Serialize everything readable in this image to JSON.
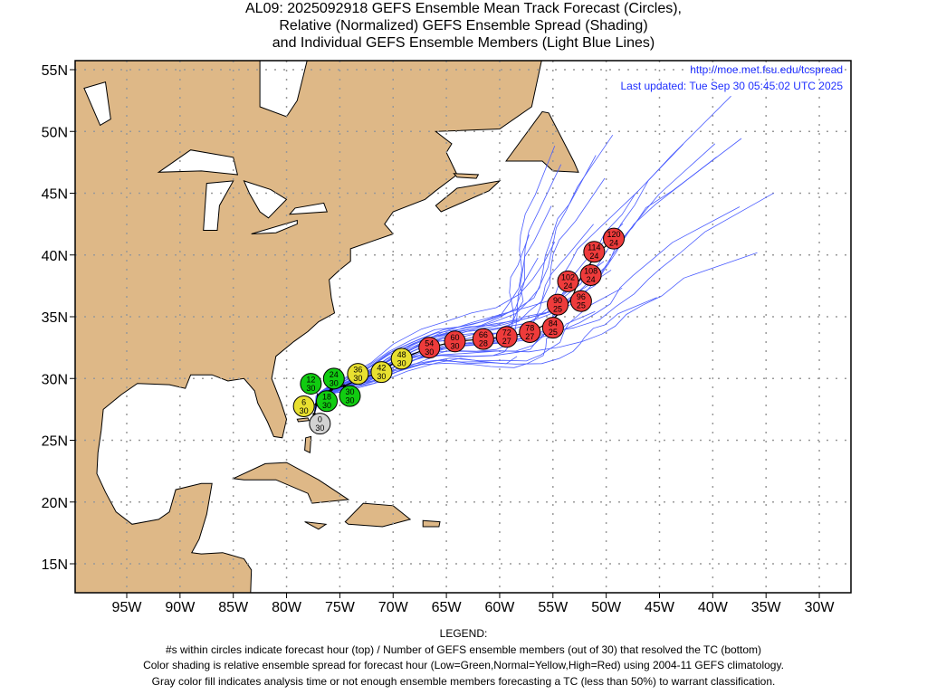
{
  "title": {
    "line1": "AL09: 2025092918 GEFS Ensemble Mean Track Forecast (Circles),",
    "line2": "Relative (Normalized) GEFS Ensemble Spread (Shading)",
    "line3": "and Individual GEFS Ensemble Members (Light Blue Lines)"
  },
  "info": {
    "url": "http://moe.met.fsu.edu/tcspread",
    "updated": "Last updated: Tue Sep 30 05:45:02 UTC 2025"
  },
  "legend": {
    "heading": "LEGEND:",
    "line1": "#s within circles indicate forecast hour (top) / Number of GEFS ensemble members (out of 30) that resolved the TC (bottom)",
    "line2": "Color shading is relative ensemble spread for forecast hour (Low=Green,Normal=Yellow,High=Red) using 2004-11 GEFS climatology.",
    "line3": "Gray color fill indicates analysis time or not enough ensemble members forecasting a TC (less than 50%) to warrant classification."
  },
  "colors": {
    "land": "#deb887",
    "low": "#11cc11",
    "normal": "#e8e030",
    "high": "#ee3b3b",
    "gray": "#d3d3d3",
    "member": "#4a5cff",
    "grid": "#999999"
  },
  "chart_data": {
    "type": "scatter",
    "projection": "lat-lon",
    "xlim": [
      -100,
      -27
    ],
    "ylim": [
      12.7,
      55.7
    ],
    "grid": true,
    "x_ticks": [
      {
        "value": -95,
        "label": "95W"
      },
      {
        "value": -90,
        "label": "90W"
      },
      {
        "value": -85,
        "label": "85W"
      },
      {
        "value": -80,
        "label": "80W"
      },
      {
        "value": -75,
        "label": "75W"
      },
      {
        "value": -70,
        "label": "70W"
      },
      {
        "value": -65,
        "label": "65W"
      },
      {
        "value": -60,
        "label": "60W"
      },
      {
        "value": -55,
        "label": "55W"
      },
      {
        "value": -50,
        "label": "50W"
      },
      {
        "value": -45,
        "label": "45W"
      },
      {
        "value": -40,
        "label": "40W"
      },
      {
        "value": -35,
        "label": "35W"
      },
      {
        "value": -30,
        "label": "30W"
      }
    ],
    "y_ticks": [
      {
        "value": 55,
        "label": "55N"
      },
      {
        "value": 50,
        "label": "50N"
      },
      {
        "value": 45,
        "label": "45N"
      },
      {
        "value": 40,
        "label": "40N"
      },
      {
        "value": 35,
        "label": "35N"
      },
      {
        "value": 30,
        "label": "30N"
      },
      {
        "value": 25,
        "label": "25N"
      },
      {
        "value": 20,
        "label": "20N"
      },
      {
        "value": 15,
        "label": "15N"
      }
    ],
    "mean_track": [
      {
        "hour": "0",
        "members": "30",
        "spread": "gray",
        "lon": -77.4,
        "lat": 27.1
      },
      {
        "hour": "6",
        "members": "30",
        "spread": "normal",
        "lon": -77.2,
        "lat": 27.9
      },
      {
        "hour": "12",
        "members": "30",
        "spread": "low",
        "lon": -77.0,
        "lat": 28.6
      },
      {
        "hour": "18",
        "members": "30",
        "spread": "low",
        "lon": -76.6,
        "lat": 28.8
      },
      {
        "hour": "24",
        "members": "30",
        "spread": "low",
        "lon": -75.8,
        "lat": 29.1
      },
      {
        "hour": "30",
        "members": "30",
        "spread": "low",
        "lon": -74.6,
        "lat": 29.4
      },
      {
        "hour": "36",
        "members": "30",
        "spread": "normal",
        "lon": -73.2,
        "lat": 29.9
      },
      {
        "hour": "42",
        "members": "30",
        "spread": "normal",
        "lon": -71.4,
        "lat": 30.5
      },
      {
        "hour": "48",
        "members": "30",
        "spread": "normal",
        "lon": -69.2,
        "lat": 31.6
      },
      {
        "hour": "54",
        "members": "30",
        "spread": "high",
        "lon": -66.6,
        "lat": 32.5
      },
      {
        "hour": "60",
        "members": "30",
        "spread": "high",
        "lon": -64.2,
        "lat": 33.0
      },
      {
        "hour": "66",
        "members": "28",
        "spread": "high",
        "lon": -61.5,
        "lat": 33.2
      },
      {
        "hour": "72",
        "members": "27",
        "spread": "high",
        "lon": -59.2,
        "lat": 33.4
      },
      {
        "hour": "78",
        "members": "27",
        "spread": "high",
        "lon": -56.9,
        "lat": 33.8
      },
      {
        "hour": "84",
        "members": "25",
        "spread": "high",
        "lon": -55.3,
        "lat": 34.6
      },
      {
        "hour": "90",
        "members": "25",
        "spread": "high",
        "lon": -54.1,
        "lat": 35.5
      },
      {
        "hour": "96",
        "members": "25",
        "spread": "high",
        "lon": -53.2,
        "lat": 36.5
      },
      {
        "hour": "102",
        "members": "24",
        "spread": "high",
        "lon": -52.7,
        "lat": 37.7
      },
      {
        "hour": "108",
        "members": "24",
        "spread": "high",
        "lon": -52.0,
        "lat": 38.7
      },
      {
        "hour": "114",
        "members": "24",
        "spread": "high",
        "lon": -51.0,
        "lat": 39.9
      },
      {
        "hour": "120",
        "members": "24",
        "spread": "high",
        "lon": -49.5,
        "lat": 41.2
      }
    ]
  }
}
